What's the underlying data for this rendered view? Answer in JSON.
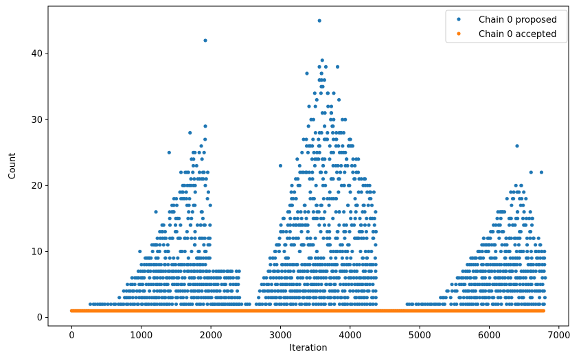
{
  "chart_data": {
    "type": "scatter",
    "title": "",
    "xlabel": "Iteration",
    "ylabel": "Count",
    "xlim": [
      -340,
      7140
    ],
    "ylim": [
      -1.3,
      47.2
    ],
    "x_ticks": [
      0,
      1000,
      2000,
      3000,
      4000,
      5000,
      6000,
      7000
    ],
    "y_ticks": [
      0,
      10,
      20,
      30,
      40
    ],
    "grid": false,
    "legend_position": "top-right",
    "series": [
      {
        "name": "Chain 0 proposed",
        "color": "#1f77b4",
        "segments": [
          {
            "x_start": 0,
            "x_end": 260,
            "level": 1
          },
          {
            "x_start": 260,
            "x_end": 2000,
            "peak_x": 1900,
            "peak_level": 42,
            "band_top": 30,
            "shape": "rising"
          },
          {
            "x_start": 2000,
            "x_end": 2400,
            "level": 2,
            "band_top": 7
          },
          {
            "x_start": 2400,
            "x_end": 4380,
            "peak_x": 3560,
            "peak_level": 45,
            "band_top": 40,
            "shape": "rising"
          },
          {
            "x_start": 4380,
            "x_end": 4800,
            "level": 1
          },
          {
            "x_start": 4800,
            "x_end": 6790,
            "peak_x": 6400,
            "peak_level": 26,
            "band_top": 22,
            "shape": "rising"
          }
        ],
        "notable_points": [
          {
            "x": 1920,
            "y": 42
          },
          {
            "x": 3560,
            "y": 45
          },
          {
            "x": 3600,
            "y": 39
          },
          {
            "x": 3380,
            "y": 37
          },
          {
            "x": 3820,
            "y": 38
          },
          {
            "x": 3410,
            "y": 32
          },
          {
            "x": 3840,
            "y": 33
          },
          {
            "x": 3930,
            "y": 30
          },
          {
            "x": 1920,
            "y": 29
          },
          {
            "x": 1700,
            "y": 28
          },
          {
            "x": 1400,
            "y": 25
          },
          {
            "x": 1770,
            "y": 25
          },
          {
            "x": 6400,
            "y": 26
          },
          {
            "x": 3000,
            "y": 23
          },
          {
            "x": 1570,
            "y": 22
          },
          {
            "x": 1210,
            "y": 16
          },
          {
            "x": 980,
            "y": 10
          },
          {
            "x": 6600,
            "y": 22
          },
          {
            "x": 6750,
            "y": 22
          },
          {
            "x": 6200,
            "y": 16
          },
          {
            "x": 4350,
            "y": 14
          },
          {
            "x": 4150,
            "y": 10
          }
        ]
      },
      {
        "name": "Chain 0 accepted",
        "color": "#ff7f0e",
        "x_start": 0,
        "x_end": 6790,
        "level": 1
      }
    ]
  }
}
